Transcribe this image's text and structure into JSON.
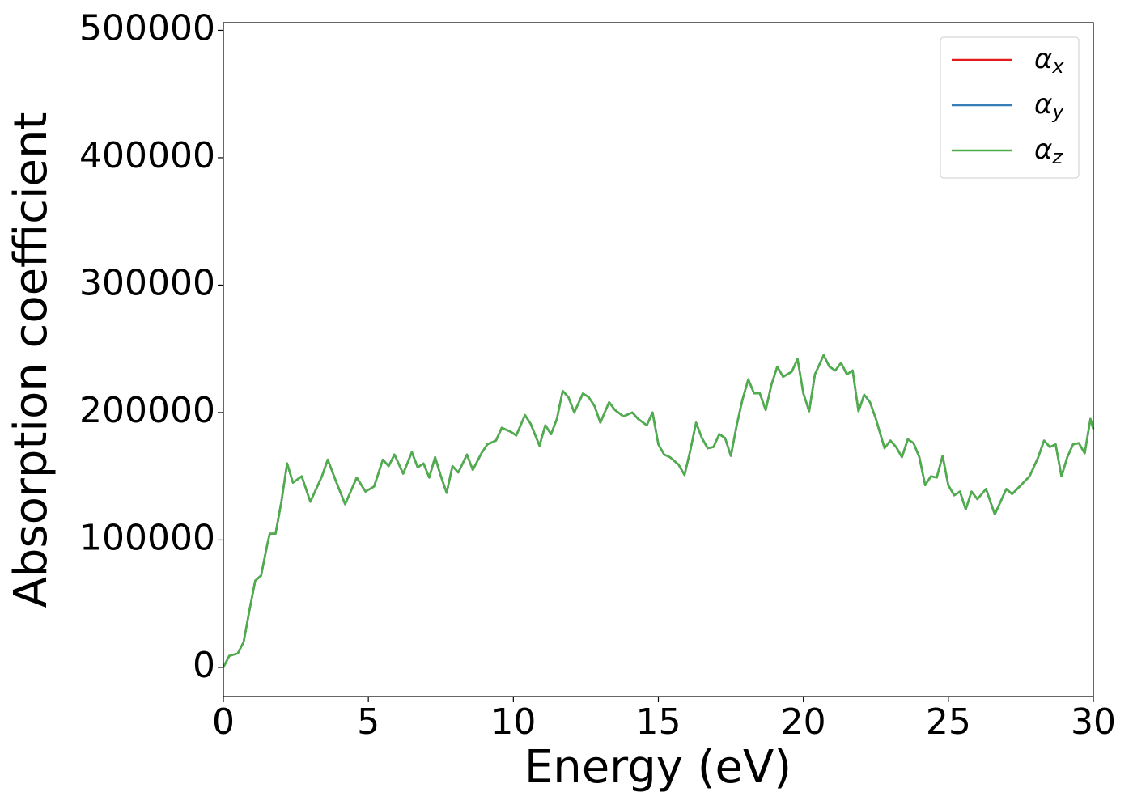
{
  "chart_data": {
    "type": "line",
    "xlabel": "Energy (eV)",
    "ylabel": "Absorption coefficient",
    "x": [
      0,
      0.2,
      0.5,
      0.7,
      0.9,
      1.1,
      1.3,
      1.5,
      1.6,
      1.8,
      2.0,
      2.2,
      2.4,
      2.7,
      3.0,
      3.4,
      3.6,
      3.9,
      4.2,
      4.6,
      4.9,
      5.2,
      5.5,
      5.7,
      5.9,
      6.2,
      6.5,
      6.7,
      6.9,
      7.1,
      7.3,
      7.5,
      7.7,
      7.9,
      8.1,
      8.4,
      8.6,
      8.9,
      9.1,
      9.4,
      9.6,
      9.9,
      10.1,
      10.4,
      10.6,
      10.9,
      11.1,
      11.3,
      11.5,
      11.7,
      11.9,
      12.1,
      12.4,
      12.6,
      12.8,
      13.0,
      13.3,
      13.5,
      13.8,
      14.1,
      14.3,
      14.6,
      14.8,
      15.0,
      15.2,
      15.4,
      15.7,
      15.9,
      16.1,
      16.3,
      16.5,
      16.7,
      16.9,
      17.1,
      17.3,
      17.5,
      17.7,
      17.9,
      18.1,
      18.3,
      18.5,
      18.7,
      18.9,
      19.1,
      19.3,
      19.6,
      19.8,
      20.0,
      20.2,
      20.4,
      20.7,
      20.9,
      21.1,
      21.3,
      21.5,
      21.7,
      21.9,
      22.1,
      22.3,
      22.5,
      22.8,
      23.0,
      23.2,
      23.4,
      23.6,
      23.8,
      24.0,
      24.2,
      24.4,
      24.6,
      24.8,
      25.0,
      25.2,
      25.4,
      25.6,
      25.8,
      26.0,
      26.3,
      26.6,
      26.8,
      27.0,
      27.2,
      27.5,
      27.8,
      28.1,
      28.3,
      28.5,
      28.7,
      28.9,
      29.1,
      29.3,
      29.5,
      29.7,
      29.9,
      30.0
    ],
    "series": [
      {
        "name": "αx",
        "color": "#e41a1c",
        "values": [
          0,
          9000,
          11000,
          20000,
          45000,
          68000,
          72000,
          95000,
          105000,
          105000,
          130000,
          160000,
          145000,
          150000,
          130000,
          150000,
          163000,
          145000,
          128000,
          149000,
          138000,
          142000,
          163000,
          158000,
          167000,
          152000,
          169000,
          157000,
          160000,
          149000,
          165000,
          150000,
          137000,
          158000,
          153000,
          167000,
          155000,
          168000,
          175000,
          178000,
          188000,
          185000,
          182000,
          198000,
          191000,
          174000,
          190000,
          183000,
          195000,
          217000,
          212000,
          200000,
          215000,
          212000,
          205000,
          192000,
          208000,
          202000,
          197000,
          200000,
          195000,
          190000,
          200000,
          175000,
          167000,
          165000,
          159000,
          151000,
          170000,
          192000,
          180000,
          172000,
          173000,
          183000,
          180000,
          166000,
          190000,
          210000,
          226000,
          215000,
          215000,
          202000,
          222000,
          236000,
          228000,
          232000,
          242000,
          215000,
          201000,
          230000,
          245000,
          236000,
          233000,
          239000,
          230000,
          233000,
          201000,
          214000,
          208000,
          195000,
          172000,
          178000,
          173000,
          165000,
          179000,
          176000,
          165000,
          143000,
          150000,
          149000,
          166000,
          143000,
          135000,
          138000,
          124000,
          138000,
          132000,
          140000,
          120000,
          130000,
          140000,
          136000,
          143000,
          150000,
          165000,
          178000,
          173000,
          175000,
          150000,
          165000,
          175000,
          176000,
          168000,
          195000,
          187000
        ]
      },
      {
        "name": "αy",
        "color": "#377eb8",
        "values": [
          0,
          9000,
          11000,
          20000,
          45000,
          68000,
          72000,
          95000,
          105000,
          105000,
          130000,
          160000,
          145000,
          150000,
          130000,
          150000,
          163000,
          145000,
          128000,
          149000,
          138000,
          142000,
          163000,
          158000,
          167000,
          152000,
          169000,
          157000,
          160000,
          149000,
          165000,
          150000,
          137000,
          158000,
          153000,
          167000,
          155000,
          168000,
          175000,
          178000,
          188000,
          185000,
          182000,
          198000,
          191000,
          174000,
          190000,
          183000,
          195000,
          217000,
          212000,
          200000,
          215000,
          212000,
          205000,
          192000,
          208000,
          202000,
          197000,
          200000,
          195000,
          190000,
          200000,
          175000,
          167000,
          165000,
          159000,
          151000,
          170000,
          192000,
          180000,
          172000,
          173000,
          183000,
          180000,
          166000,
          190000,
          210000,
          226000,
          215000,
          215000,
          202000,
          222000,
          236000,
          228000,
          232000,
          242000,
          215000,
          201000,
          230000,
          245000,
          236000,
          233000,
          239000,
          230000,
          233000,
          201000,
          214000,
          208000,
          195000,
          172000,
          178000,
          173000,
          165000,
          179000,
          176000,
          165000,
          143000,
          150000,
          149000,
          166000,
          143000,
          135000,
          138000,
          124000,
          138000,
          132000,
          140000,
          120000,
          130000,
          140000,
          136000,
          143000,
          150000,
          165000,
          178000,
          173000,
          175000,
          150000,
          165000,
          175000,
          176000,
          168000,
          195000,
          187000
        ]
      },
      {
        "name": "αz",
        "color": "#4daf4a",
        "values": [
          0,
          9000,
          11000,
          20000,
          45000,
          68000,
          72000,
          95000,
          105000,
          105000,
          130000,
          160000,
          145000,
          150000,
          130000,
          150000,
          163000,
          145000,
          128000,
          149000,
          138000,
          142000,
          163000,
          158000,
          167000,
          152000,
          169000,
          157000,
          160000,
          149000,
          165000,
          150000,
          137000,
          158000,
          153000,
          167000,
          155000,
          168000,
          175000,
          178000,
          188000,
          185000,
          182000,
          198000,
          191000,
          174000,
          190000,
          183000,
          195000,
          217000,
          212000,
          200000,
          215000,
          212000,
          205000,
          192000,
          208000,
          202000,
          197000,
          200000,
          195000,
          190000,
          200000,
          175000,
          167000,
          165000,
          159000,
          151000,
          170000,
          192000,
          180000,
          172000,
          173000,
          183000,
          180000,
          166000,
          190000,
          210000,
          226000,
          215000,
          215000,
          202000,
          222000,
          236000,
          228000,
          232000,
          242000,
          215000,
          201000,
          230000,
          245000,
          236000,
          233000,
          239000,
          230000,
          233000,
          201000,
          214000,
          208000,
          195000,
          172000,
          178000,
          173000,
          165000,
          179000,
          176000,
          165000,
          143000,
          150000,
          149000,
          166000,
          143000,
          135000,
          138000,
          124000,
          138000,
          132000,
          140000,
          120000,
          130000,
          140000,
          136000,
          143000,
          150000,
          165000,
          178000,
          173000,
          175000,
          150000,
          165000,
          175000,
          176000,
          168000,
          195000,
          187000
        ]
      }
    ],
    "xlim": [
      0,
      30
    ],
    "xticks": [
      0,
      5,
      10,
      15,
      20,
      25,
      30
    ],
    "ylim": [
      -22900,
      506000
    ],
    "yticks": [
      0,
      100000,
      200000,
      300000,
      400000,
      500000
    ],
    "grid": false,
    "legend": "upper right"
  }
}
